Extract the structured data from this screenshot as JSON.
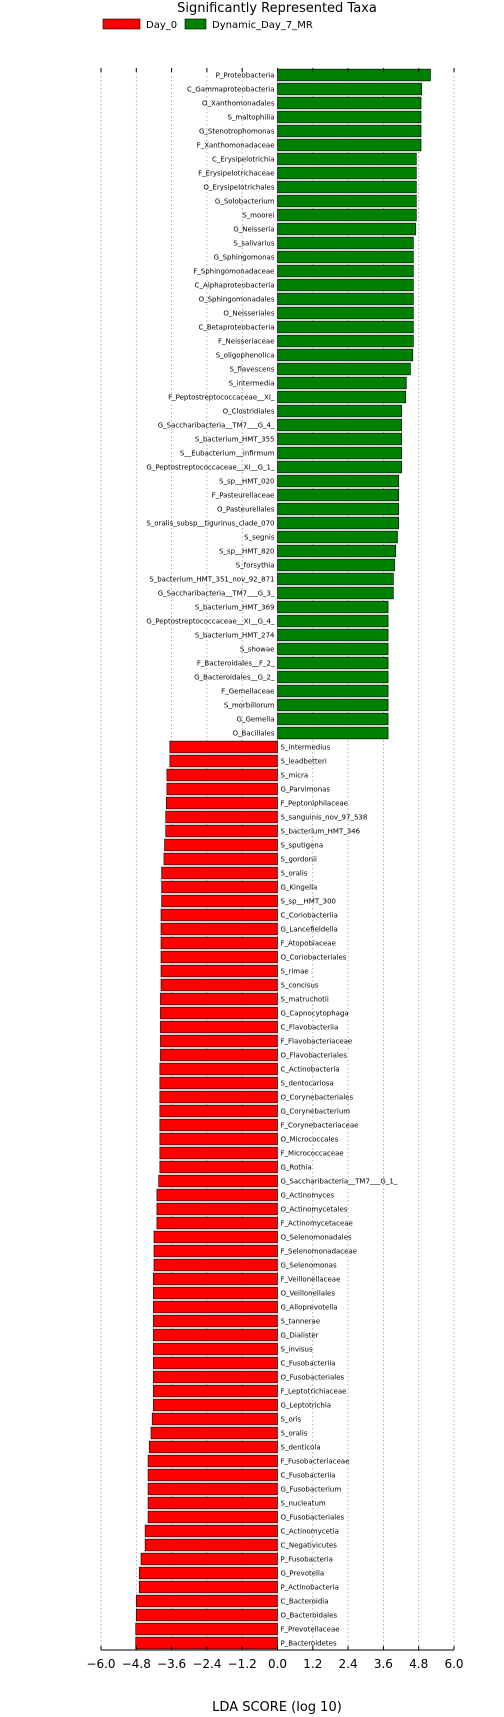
{
  "chart_data": {
    "type": "bar",
    "orientation": "horizontal",
    "title": "Significantly Represented Taxa",
    "xlabel": "LDA SCORE (log 10)",
    "ylabel": "",
    "xlim": [
      -6.0,
      6.0
    ],
    "xticks": [
      "-6.0",
      "-4.8",
      "-3.6",
      "-2.4",
      "-1.2",
      "0.0",
      "1.2",
      "2.4",
      "3.6",
      "4.8",
      "6.0"
    ],
    "grid": "vertical dotted",
    "legend_position": "top-left",
    "legend": [
      {
        "name": "Day_0",
        "color": "#ff0000"
      },
      {
        "name": "Dynamic_Day_7_MR",
        "color": "#008000"
      }
    ],
    "series": [
      {
        "name": "Dynamic_Day_7_MR",
        "color": "#008000",
        "labels": [
          "P_Proteobacteria",
          "C_Gammaproteobacteria",
          "O_Xanthomonadales",
          "S_maltophilia",
          "G_Stenotrophomonas",
          "F_Xanthomonadaceae",
          "C_Erysipelotrichia",
          "F_Erysipelotrichaceae",
          "O_Erysipelotrichales",
          "G_Solobacterium",
          "S_moorei",
          "G_Neisseria",
          "S_salivarius",
          "G_Sphingomonas",
          "F_Sphingomonadaceae",
          "C_Alphaproteobacteria",
          "O_Sphingomonadales",
          "O_Neisseriales",
          "C_Betaproteobacteria",
          "F_Neisseriaceae",
          "S_oligophenolica",
          "S_flavescens",
          "S_intermedia",
          "F_Peptostreptococcaceae__XI_",
          "O_Clostridiales",
          "G_Saccharibacteria__TM7___G_4_",
          "S_bacterium_HMT_355",
          "S__Eubacterium__infirmum",
          "G_Peptostreptococcaceae__XI__G_1_",
          "S_sp__HMT_020",
          "F_Pasteurellaceae",
          "O_Pasteurellales",
          "S_oralis_subsp__tigurinus_clade_070",
          "S_segnis",
          "S_sp__HMT_820",
          "S_forsythia",
          "S_bacterium_HMT_351_nov_92_871",
          "G_Saccharibacteria__TM7___G_3_",
          "S_bacterium_HMT_369",
          "G_Peptostreptococcaceae__XI__G_4_",
          "S_bacterium_HMT_274",
          "S_showae",
          "F_Bacteroidales__F_2_",
          "G_Bacteroidales__G_2_",
          "F_Gemellaceae",
          "S_morbillorum",
          "G_Gemella",
          "O_Bacillales"
        ],
        "values": [
          5.2,
          4.9,
          4.88,
          4.88,
          4.88,
          4.88,
          4.72,
          4.72,
          4.72,
          4.72,
          4.72,
          4.7,
          4.62,
          4.62,
          4.62,
          4.62,
          4.62,
          4.62,
          4.62,
          4.62,
          4.6,
          4.52,
          4.38,
          4.36,
          4.22,
          4.22,
          4.22,
          4.22,
          4.22,
          4.12,
          4.12,
          4.12,
          4.12,
          4.08,
          4.02,
          3.98,
          3.94,
          3.94,
          3.76,
          3.76,
          3.76,
          3.76,
          3.76,
          3.76,
          3.76,
          3.76,
          3.76,
          3.76
        ]
      },
      {
        "name": "Day_0",
        "color": "#ff0000",
        "labels": [
          "S_intermedius",
          "S_leadbetteri",
          "S_micra",
          "G_Parvimonas",
          "F_Peptoniphilaceae",
          "S_sanguinis_nov_97_538",
          "S_bacterium_HMT_346",
          "S_sputigena",
          "S_gordonii",
          "S_oralis",
          "G_Kingella",
          "S_sp__HMT_300",
          "C_Coriobacteriia",
          "G_Lancefieldella",
          "F_Atopobiaceae",
          "O_Coriobacteriales",
          "S_rimae",
          "S_concisus",
          "S_matruchotii",
          "G_Capnocytophaga",
          "C_Flavobacteriia",
          "F_Flavobacteriaceae",
          "O_Flavobacteriales",
          "C_Actinobacteria",
          "S_dentocariosa",
          "O_Corynebacteriales",
          "G_Corynebacterium",
          "F_Corynebacteriaceae",
          "O_Micrococcales",
          "F_Micrococcaceae",
          "G_Rothia",
          "G_Saccharibacteria__TM7___G_1_",
          "G_Actinomyces",
          "O_Actinomycetales",
          "F_Actinomycetaceae",
          "O_Selenomonadales",
          "F_Selenomonadaceae",
          "G_Selenomonas",
          "F_Veillonellaceae",
          "O_Veillonellales",
          "G_Alloprevotella",
          "S_tannerae",
          "G_Dialister",
          "S_invisus",
          "C_Fusobacteriia",
          "O_Fusobacteriales",
          "F_Leptotrichiaceae",
          "G_Leptotrichia",
          "S_oris",
          "S_oralis",
          "S_denticola",
          "F_Fusobacteriaceae",
          "C_Fusobacteriia",
          "G_Fusobacterium",
          "S_nucleatum",
          "O_Fusobacteriales",
          "C_Actinomycetia",
          "C_Negativicutes",
          "P_Fusobacteria",
          "G_Prevotella",
          "P_Actinobacteria",
          "C_Bacteroidia",
          "O_Bacteroidales",
          "F_Prevotellaceae",
          "P_Bacteroidetes"
        ],
        "values": [
          -3.66,
          -3.66,
          -3.76,
          -3.76,
          -3.78,
          -3.8,
          -3.8,
          -3.84,
          -3.86,
          -3.94,
          -3.94,
          -3.94,
          -3.96,
          -3.96,
          -3.96,
          -3.96,
          -3.96,
          -3.96,
          -3.98,
          -3.98,
          -3.98,
          -3.98,
          -3.98,
          -4.0,
          -4.0,
          -4.0,
          -4.0,
          -4.0,
          -4.0,
          -4.0,
          -4.0,
          -4.04,
          -4.1,
          -4.1,
          -4.1,
          -4.2,
          -4.2,
          -4.2,
          -4.22,
          -4.22,
          -4.22,
          -4.22,
          -4.22,
          -4.22,
          -4.22,
          -4.22,
          -4.22,
          -4.22,
          -4.26,
          -4.3,
          -4.36,
          -4.4,
          -4.4,
          -4.4,
          -4.4,
          -4.4,
          -4.5,
          -4.5,
          -4.64,
          -4.7,
          -4.7,
          -4.8,
          -4.8,
          -4.82,
          -4.82
        ]
      }
    ]
  }
}
